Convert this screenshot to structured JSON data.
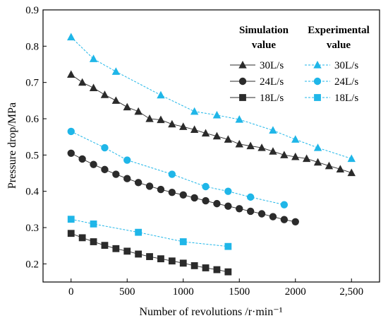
{
  "chart_data": {
    "type": "scatter",
    "xlabel": "Number of revolutions /r·min⁻¹",
    "ylabel": "Pressure drop/MPa",
    "xlim": [
      -250,
      2750
    ],
    "ylim": [
      0.15,
      0.9
    ],
    "xticks": [
      0,
      500,
      1000,
      1500,
      2000,
      2500
    ],
    "xtick_labels": [
      "0",
      "500",
      "1000",
      "1500",
      "2000",
      "2,500"
    ],
    "yticks": [
      0.2,
      0.3,
      0.4,
      0.5,
      0.6,
      0.7,
      0.8,
      0.9
    ],
    "ytick_labels": [
      "0.2",
      "0.3",
      "0.4",
      "0.5",
      "0.6",
      "0.7",
      "0.8",
      "0.9"
    ],
    "grid": false,
    "legend_position": "top-right",
    "legend_headers": {
      "simulation_line1": "Simulation",
      "simulation_line2": "value",
      "experimental_line1": "Experimental",
      "experimental_line2": "value"
    },
    "colors": {
      "simulation": "#2b2b2b",
      "experimental": "#1fb6e8"
    },
    "series": [
      {
        "name": "30L/s",
        "group": "simulation",
        "marker": "triangle",
        "x": [
          0,
          100,
          200,
          300,
          400,
          500,
          600,
          700,
          800,
          900,
          1000,
          1100,
          1200,
          1300,
          1400,
          1500,
          1600,
          1700,
          1800,
          1900,
          2000,
          2100,
          2200,
          2300,
          2400,
          2500
        ],
        "y": [
          0.722,
          0.7,
          0.685,
          0.666,
          0.65,
          0.632,
          0.62,
          0.6,
          0.597,
          0.585,
          0.578,
          0.57,
          0.56,
          0.552,
          0.543,
          0.53,
          0.525,
          0.52,
          0.51,
          0.5,
          0.495,
          0.49,
          0.48,
          0.47,
          0.461,
          0.451
        ]
      },
      {
        "name": "24L/s",
        "group": "simulation",
        "marker": "circle",
        "x": [
          0,
          100,
          200,
          300,
          400,
          500,
          600,
          700,
          800,
          900,
          1000,
          1100,
          1200,
          1300,
          1400,
          1500,
          1600,
          1700,
          1800,
          1900,
          2000
        ],
        "y": [
          0.505,
          0.489,
          0.474,
          0.46,
          0.447,
          0.435,
          0.424,
          0.414,
          0.405,
          0.397,
          0.39,
          0.382,
          0.374,
          0.366,
          0.359,
          0.352,
          0.345,
          0.338,
          0.33,
          0.322,
          0.316
        ]
      },
      {
        "name": "18L/s",
        "group": "simulation",
        "marker": "square",
        "x": [
          0,
          100,
          200,
          300,
          400,
          500,
          600,
          700,
          800,
          900,
          1000,
          1100,
          1200,
          1300,
          1400
        ],
        "y": [
          0.284,
          0.272,
          0.261,
          0.251,
          0.242,
          0.235,
          0.227,
          0.22,
          0.214,
          0.208,
          0.202,
          0.195,
          0.189,
          0.184,
          0.178
        ]
      },
      {
        "name": "30L/s",
        "group": "experimental",
        "marker": "triangle",
        "x": [
          0,
          200,
          400,
          800,
          1100,
          1300,
          1500,
          1800,
          2000,
          2200,
          2500
        ],
        "y": [
          0.825,
          0.765,
          0.73,
          0.665,
          0.62,
          0.61,
          0.598,
          0.568,
          0.543,
          0.52,
          0.49
        ]
      },
      {
        "name": "24L/s",
        "group": "experimental",
        "marker": "circle",
        "x": [
          0,
          300,
          500,
          900,
          1200,
          1400,
          1600,
          1900
        ],
        "y": [
          0.565,
          0.52,
          0.486,
          0.447,
          0.413,
          0.4,
          0.384,
          0.363
        ]
      },
      {
        "name": "18L/s",
        "group": "experimental",
        "marker": "square",
        "x": [
          0,
          200,
          600,
          1000,
          1400
        ],
        "y": [
          0.323,
          0.31,
          0.287,
          0.261,
          0.248
        ]
      }
    ]
  }
}
